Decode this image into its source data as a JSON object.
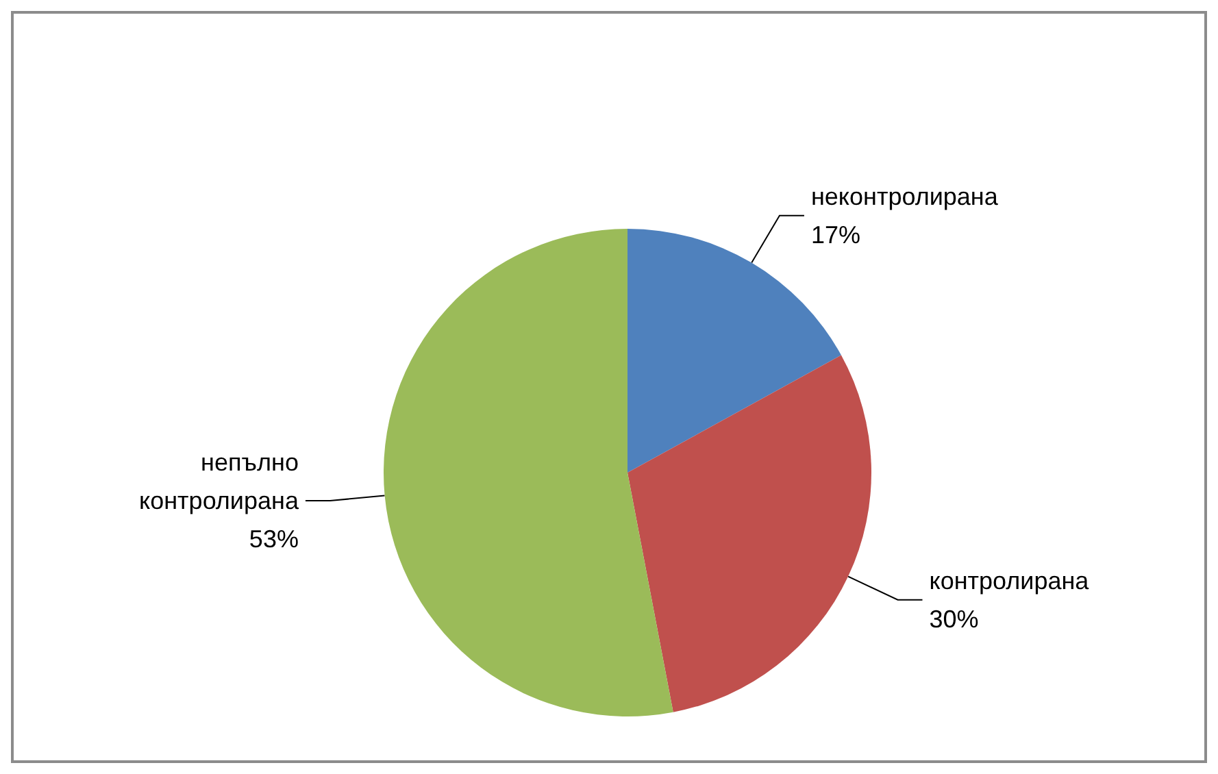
{
  "chart_data": {
    "type": "pie",
    "categories": [
      "неконтролирана",
      "контролирана",
      "непълно контролирана"
    ],
    "values": [
      17,
      30,
      53
    ],
    "colors": [
      "#4f81bd",
      "#c0504d",
      "#9bbb59"
    ],
    "legend": false,
    "value_labels": [
      "17%",
      "30%",
      "53%"
    ]
  }
}
